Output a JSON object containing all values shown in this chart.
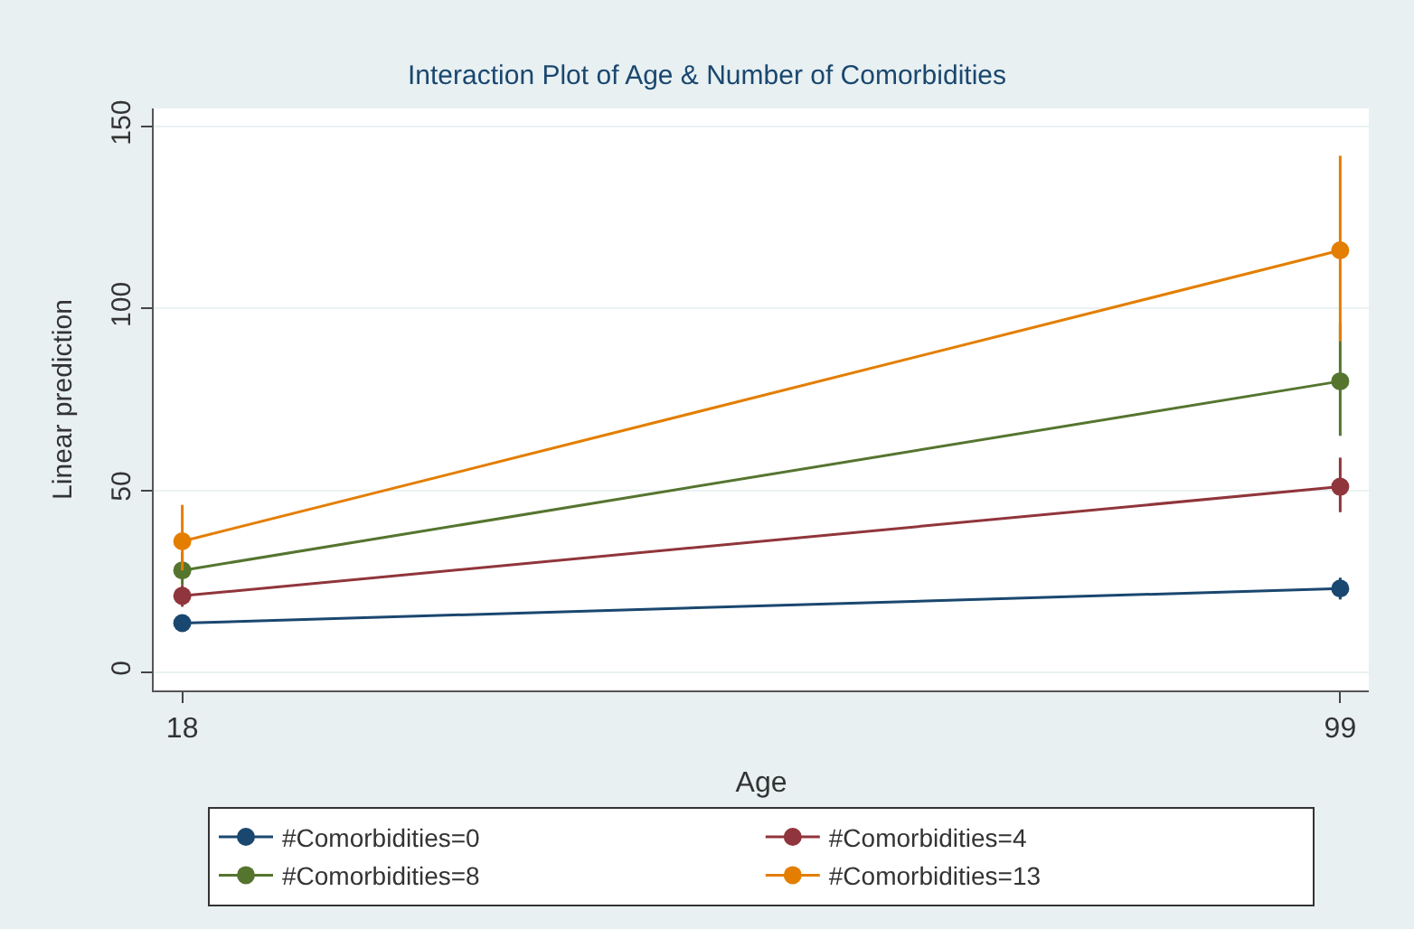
{
  "chart_data": {
    "type": "line",
    "title": "Interaction Plot of Age & Number of Comorbidities",
    "xlabel": "Age",
    "ylabel": "Linear prediction",
    "x": [
      18,
      99
    ],
    "xlim": [
      16,
      101
    ],
    "xticks": [
      18,
      99
    ],
    "ylim": [
      -5,
      155
    ],
    "yticks": [
      0,
      50,
      100,
      150
    ],
    "grid": "y",
    "legend": "bottom",
    "marker": "circle",
    "line_style": "solid",
    "series": [
      {
        "name": "#Comorbidities=0",
        "color": "#1a476f",
        "values": [
          13.5,
          23
        ],
        "errors": [
          [
            12,
            15
          ],
          [
            20,
            26
          ]
        ]
      },
      {
        "name": "#Comorbidities=4",
        "color": "#90353b",
        "values": [
          21,
          51
        ],
        "errors": [
          [
            18,
            24
          ],
          [
            44,
            59
          ]
        ]
      },
      {
        "name": "#Comorbidities=8",
        "color": "#55752f",
        "values": [
          28,
          80
        ],
        "errors": [
          [
            24,
            33
          ],
          [
            65,
            96
          ]
        ]
      },
      {
        "name": "#Comorbidities=13",
        "color": "#e37e00",
        "values": [
          36,
          116
        ],
        "errors": [
          [
            28,
            46
          ],
          [
            91,
            142
          ]
        ]
      }
    ]
  }
}
